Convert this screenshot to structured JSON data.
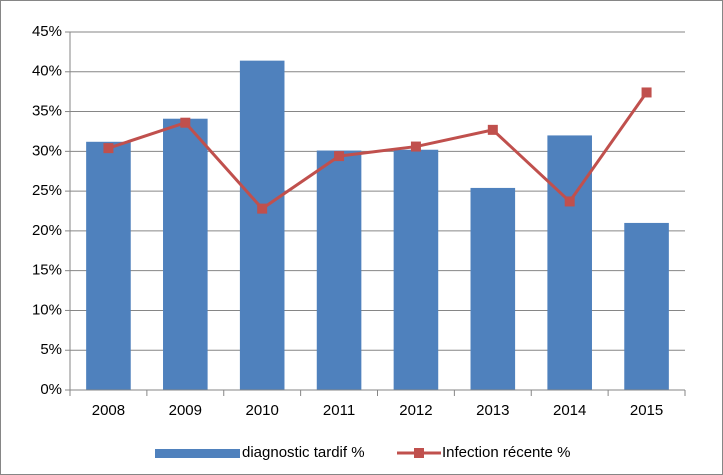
{
  "chart_data": {
    "type": "bar",
    "categories": [
      "2008",
      "2009",
      "2010",
      "2011",
      "2012",
      "2013",
      "2014",
      "2015"
    ],
    "series": [
      {
        "name": "diagnostic tardif %",
        "type": "bar",
        "color": "#4f81bd",
        "values": [
          31.2,
          34.1,
          41.4,
          30.1,
          30.2,
          25.4,
          32.0,
          21.0
        ]
      },
      {
        "name": "Infection récente %",
        "type": "line",
        "color": "#c0504d",
        "values": [
          30.4,
          33.6,
          22.8,
          29.4,
          30.6,
          32.7,
          23.7,
          37.4
        ]
      }
    ],
    "ylim": [
      0,
      45
    ],
    "yticks": [
      {
        "value": 0,
        "label": "0%"
      },
      {
        "value": 5,
        "label": "5%"
      },
      {
        "value": 10,
        "label": "10%"
      },
      {
        "value": 15,
        "label": "15%"
      },
      {
        "value": 20,
        "label": "20%"
      },
      {
        "value": 25,
        "label": "25%"
      },
      {
        "value": 30,
        "label": "30%"
      },
      {
        "value": 35,
        "label": "35%"
      },
      {
        "value": 40,
        "label": "40%"
      },
      {
        "value": 45,
        "label": "45%"
      }
    ],
    "grid": true,
    "legend": "bottom"
  }
}
